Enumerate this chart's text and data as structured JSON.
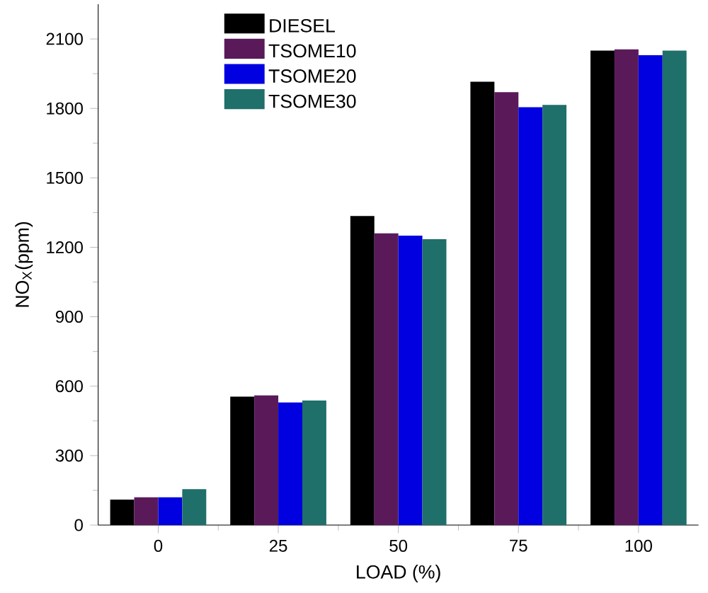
{
  "chart_data": {
    "type": "bar",
    "xlabel": "LOAD (%)",
    "ylabel": "NO$_{X}$(ppm)",
    "categories": [
      "0",
      "25",
      "50",
      "75",
      "100"
    ],
    "series": [
      {
        "name": "DIESEL",
        "color": "#000000",
        "values": [
          110,
          555,
          1335,
          1915,
          2050
        ]
      },
      {
        "name": "TSOME10",
        "color": "#5a1a5a",
        "values": [
          120,
          560,
          1260,
          1870,
          2055
        ]
      },
      {
        "name": "TSOME20",
        "color": "#0000e0",
        "values": [
          120,
          530,
          1250,
          1805,
          2030
        ]
      },
      {
        "name": "TSOME30",
        "color": "#1f6f6a",
        "values": [
          155,
          538,
          1235,
          1815,
          2050
        ]
      }
    ],
    "ylim": [
      0,
      2250
    ],
    "yticks": [
      0,
      300,
      600,
      900,
      1200,
      1500,
      1800,
      2100
    ],
    "grid": false,
    "legend": "top"
  }
}
